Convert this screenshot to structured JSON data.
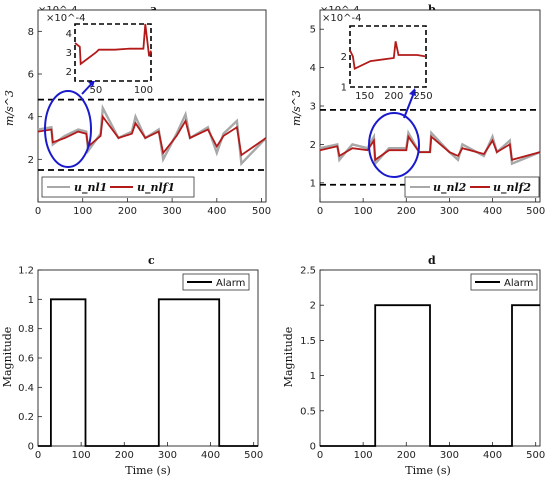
{
  "chart_data": [
    {
      "panel": "a",
      "type": "line",
      "title": "a",
      "ylabel": "m/s^3",
      "y_exponent": "×10^-4",
      "xlim": [
        0,
        510
      ],
      "ylim": [
        0,
        9
      ],
      "xticks": [
        0,
        100,
        200,
        300,
        400,
        500
      ],
      "yticks": [
        2,
        4,
        6,
        8
      ],
      "thresholds": [
        4.8,
        1.5
      ],
      "series": [
        {
          "name": "u_nl1",
          "color": "#a8a8a8",
          "x": [
            0,
            30,
            33,
            60,
            90,
            108,
            112,
            140,
            145,
            180,
            210,
            218,
            240,
            270,
            280,
            310,
            330,
            340,
            380,
            400,
            415,
            445,
            455,
            510
          ],
          "y": [
            3.4,
            3.5,
            2.7,
            3.1,
            3.4,
            3.3,
            2.4,
            3.2,
            4.4,
            3.0,
            3.3,
            4.0,
            3.0,
            3.4,
            2.0,
            3.2,
            4.1,
            3.0,
            3.5,
            2.3,
            3.2,
            3.8,
            1.8,
            3.0
          ]
        },
        {
          "name": "u_nlf1",
          "color": "#b31b1b",
          "x": [
            0,
            30,
            33,
            60,
            90,
            108,
            112,
            140,
            145,
            180,
            210,
            218,
            240,
            270,
            280,
            310,
            330,
            340,
            380,
            400,
            415,
            445,
            455,
            510
          ],
          "y": [
            3.3,
            3.4,
            2.8,
            3.0,
            3.3,
            3.2,
            2.6,
            3.1,
            4.0,
            3.0,
            3.2,
            3.7,
            3.0,
            3.3,
            2.3,
            3.1,
            3.8,
            3.0,
            3.4,
            2.6,
            3.1,
            3.5,
            2.2,
            3.0
          ]
        }
      ],
      "legend": "bottom-left",
      "inset": {
        "xlim": [
          28,
          108
        ],
        "ylim": [
          1.5,
          4.5
        ],
        "xticks": [
          50,
          100
        ],
        "yticks": [
          2,
          3,
          4
        ],
        "y_exponent": "×10^-4",
        "x": [
          28,
          33,
          34,
          50,
          53,
          70,
          85,
          100,
          102,
          106,
          108
        ],
        "y": [
          3.5,
          3.3,
          2.4,
          3.0,
          3.15,
          3.15,
          3.2,
          3.2,
          4.5,
          2.8,
          3.1
        ]
      },
      "highlight": "ellipse"
    },
    {
      "panel": "b",
      "type": "line",
      "title": "b",
      "ylabel": "m/s^3",
      "y_exponent": "×10^-4",
      "xlim": [
        0,
        510
      ],
      "ylim": [
        0.5,
        5.5
      ],
      "xticks": [
        0,
        100,
        200,
        300,
        400,
        500
      ],
      "yticks": [
        1,
        2,
        3,
        4,
        5
      ],
      "thresholds": [
        2.9,
        0.95
      ],
      "series": [
        {
          "name": "u_nl2",
          "color": "#a8a8a8",
          "x": [
            0,
            40,
            45,
            75,
            110,
            125,
            128,
            160,
            200,
            205,
            230,
            255,
            258,
            300,
            320,
            330,
            380,
            400,
            410,
            440,
            445,
            510
          ],
          "y": [
            1.9,
            2.0,
            1.6,
            2.0,
            1.9,
            2.2,
            1.5,
            1.9,
            1.9,
            2.3,
            1.8,
            1.8,
            2.3,
            1.8,
            1.6,
            2.0,
            1.7,
            2.2,
            1.8,
            2.1,
            1.5,
            1.8
          ]
        },
        {
          "name": "u_nlf2",
          "color": "#b31b1b",
          "x": [
            0,
            40,
            45,
            75,
            110,
            125,
            128,
            160,
            200,
            205,
            230,
            255,
            258,
            300,
            320,
            330,
            380,
            400,
            410,
            440,
            445,
            510
          ],
          "y": [
            1.85,
            1.95,
            1.7,
            1.9,
            1.85,
            2.1,
            1.6,
            1.85,
            1.85,
            2.2,
            1.8,
            1.8,
            2.2,
            1.8,
            1.7,
            1.9,
            1.75,
            2.1,
            1.8,
            2.0,
            1.6,
            1.8
          ]
        }
      ],
      "legend": "bottom-right",
      "inset": {
        "xlim": [
          125,
          255
        ],
        "ylim": [
          1,
          3
        ],
        "xticks": [
          150,
          200,
          250
        ],
        "yticks": [
          1,
          2
        ],
        "y_exponent": "×10^-4",
        "x": [
          125,
          130,
          133,
          160,
          200,
          203,
          208,
          240,
          255
        ],
        "y": [
          2.2,
          2.0,
          1.6,
          1.85,
          1.95,
          2.5,
          2.05,
          2.05,
          2.0
        ]
      },
      "highlight": "ellipse"
    },
    {
      "panel": "c",
      "type": "line",
      "title": "c",
      "xlabel": "Time (s)",
      "ylabel": "Magnitude",
      "xlim": [
        0,
        510
      ],
      "ylim": [
        0,
        1.2
      ],
      "xticks": [
        0,
        100,
        200,
        300,
        400,
        500
      ],
      "yticks": [
        0,
        0.2,
        0.4,
        0.6,
        0.8,
        1,
        1.2
      ],
      "series": [
        {
          "name": "Alarm",
          "color": "#000000",
          "x": [
            0,
            30,
            30,
            110,
            110,
            280,
            280,
            420,
            420,
            510
          ],
          "y": [
            0,
            0,
            1,
            1,
            0,
            0,
            1,
            1,
            0,
            0
          ]
        }
      ],
      "legend": "top-right"
    },
    {
      "panel": "d",
      "type": "line",
      "title": "d",
      "xlabel": "Time (s)",
      "ylabel": "Magnitude",
      "xlim": [
        0,
        510
      ],
      "ylim": [
        0,
        2.5
      ],
      "xticks": [
        0,
        100,
        200,
        300,
        400,
        500
      ],
      "yticks": [
        0,
        0.5,
        1,
        1.5,
        2,
        2.5
      ],
      "series": [
        {
          "name": "Alarm",
          "color": "#000000",
          "x": [
            0,
            128,
            128,
            255,
            255,
            445,
            445,
            510
          ],
          "y": [
            0,
            0,
            2,
            2,
            0,
            0,
            2,
            2
          ]
        }
      ],
      "legend": "top-right"
    }
  ]
}
